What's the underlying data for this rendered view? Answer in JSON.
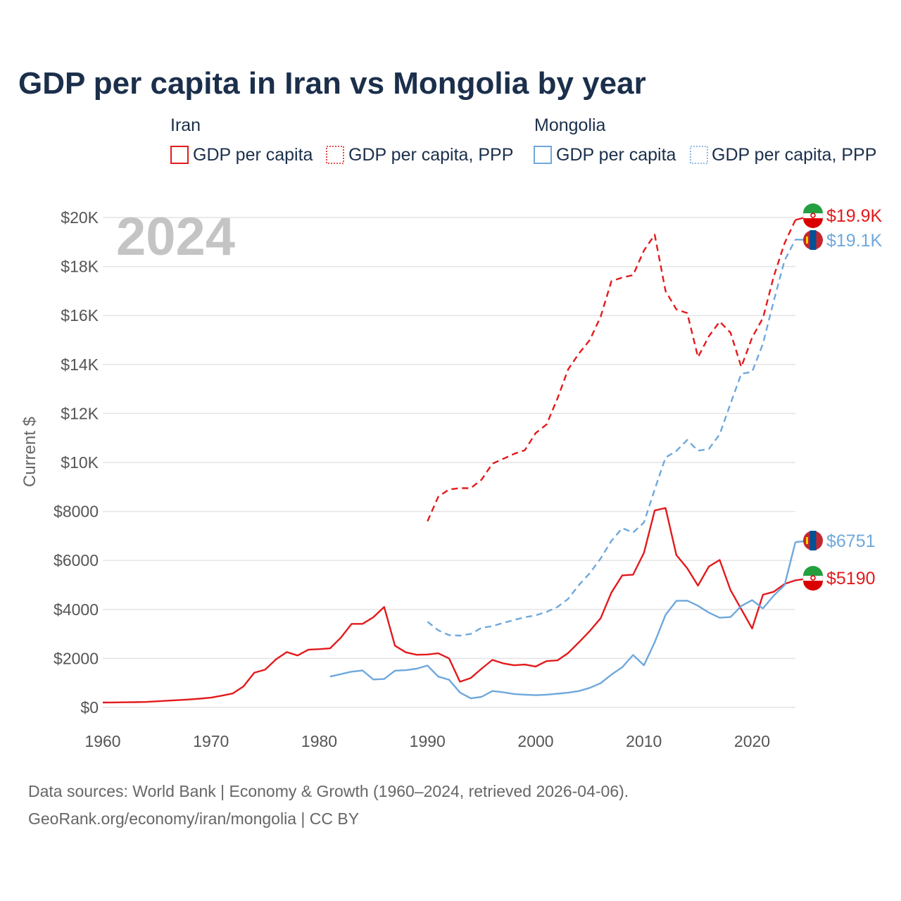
{
  "chart_data": {
    "type": "line",
    "title": "GDP per capita in Iran vs Mongolia by year",
    "ylabel": "Current $",
    "xlabel": "",
    "xlim": [
      1960,
      2024
    ],
    "ylim": [
      0,
      20000
    ],
    "grid": true,
    "year_watermark": "2024",
    "x_ticks": [
      1960,
      1970,
      1980,
      1990,
      2000,
      2010,
      2020
    ],
    "x_tick_labels": [
      "1960",
      "1970",
      "1980",
      "1990",
      "2000",
      "2010",
      "2020"
    ],
    "y_ticks": [
      0,
      2000,
      4000,
      6000,
      8000,
      10000,
      12000,
      14000,
      16000,
      18000,
      20000
    ],
    "y_tick_labels": [
      "$0",
      "$2000",
      "$4000",
      "$6000",
      "$8000",
      "$10K",
      "$12K",
      "$14K",
      "$16K",
      "$18K",
      "$20K"
    ],
    "legend": {
      "placement": "top",
      "groups": [
        {
          "title": "Iran",
          "entries": [
            "GDP per capita",
            "GDP per capita, PPP"
          ]
        },
        {
          "title": "Mongolia",
          "entries": [
            "GDP per capita",
            "GDP per capita, PPP"
          ]
        }
      ]
    },
    "colors": {
      "iran": "#e31a1c",
      "mongolia": "#6fa8dc"
    },
    "series": [
      {
        "key": "iran_gdp",
        "name": "Iran GDP per capita",
        "country": "iran",
        "dashed": false,
        "end_label": "$5190",
        "x": [
          1960,
          1961,
          1962,
          1963,
          1964,
          1965,
          1966,
          1967,
          1968,
          1969,
          1970,
          1971,
          1972,
          1973,
          1974,
          1975,
          1976,
          1977,
          1978,
          1979,
          1980,
          1981,
          1982,
          1983,
          1984,
          1985,
          1986,
          1987,
          1988,
          1989,
          1990,
          1991,
          1992,
          1993,
          1994,
          1995,
          1996,
          1997,
          1998,
          1999,
          2000,
          2001,
          2002,
          2003,
          2004,
          2005,
          2006,
          2007,
          2008,
          2009,
          2010,
          2011,
          2012,
          2013,
          2014,
          2015,
          2016,
          2017,
          2018,
          2019,
          2020,
          2021,
          2022,
          2023,
          2024
        ],
        "values": [
          200,
          205,
          210,
          215,
          225,
          250,
          275,
          300,
          325,
          360,
          400,
          480,
          570,
          860,
          1420,
          1540,
          1960,
          2260,
          2120,
          2360,
          2380,
          2410,
          2850,
          3410,
          3410,
          3680,
          4100,
          2520,
          2250,
          2150,
          2160,
          2210,
          2000,
          1050,
          1200,
          1580,
          1940,
          1800,
          1720,
          1750,
          1670,
          1890,
          1920,
          2220,
          2660,
          3120,
          3640,
          4690,
          5390,
          5420,
          6310,
          8040,
          8140,
          6220,
          5680,
          4970,
          5750,
          6020,
          4790,
          4010,
          3220,
          4600,
          4720,
          5040,
          5190
        ]
      },
      {
        "key": "iran_ppp",
        "name": "Iran GDP per capita, PPP",
        "country": "iran",
        "dashed": true,
        "end_label": "$19.9K",
        "x": [
          1990,
          1991,
          1992,
          1993,
          1994,
          1995,
          1996,
          1997,
          1998,
          1999,
          2000,
          2001,
          2002,
          2003,
          2004,
          2005,
          2006,
          2007,
          2008,
          2009,
          2010,
          2011,
          2012,
          2013,
          2014,
          2015,
          2016,
          2017,
          2018,
          2019,
          2020,
          2021,
          2022,
          2023,
          2024
        ],
        "values": [
          7600,
          8600,
          8900,
          8950,
          8950,
          9300,
          9950,
          10150,
          10350,
          10500,
          11200,
          11550,
          12600,
          13800,
          14450,
          15000,
          15950,
          17400,
          17550,
          17650,
          18650,
          19300,
          17000,
          16250,
          16100,
          14300,
          15150,
          15750,
          15300,
          13900,
          15100,
          15900,
          17600,
          18950,
          19900
        ]
      },
      {
        "key": "mongolia_gdp",
        "name": "Mongolia GDP per capita",
        "country": "mongolia",
        "dashed": false,
        "end_label": "$6751",
        "x": [
          1981,
          1982,
          1983,
          1984,
          1985,
          1986,
          1987,
          1988,
          1989,
          1990,
          1991,
          1992,
          1993,
          1994,
          1995,
          1996,
          1997,
          1998,
          1999,
          2000,
          2001,
          2002,
          2003,
          2004,
          2005,
          2006,
          2007,
          2008,
          2009,
          2010,
          2011,
          2012,
          2013,
          2014,
          2015,
          2016,
          2017,
          2018,
          2019,
          2020,
          2021,
          2022,
          2023,
          2024
        ],
        "values": [
          1260,
          1360,
          1460,
          1510,
          1140,
          1160,
          1500,
          1520,
          1580,
          1710,
          1260,
          1130,
          610,
          370,
          430,
          670,
          620,
          550,
          520,
          500,
          520,
          560,
          600,
          670,
          800,
          990,
          1340,
          1640,
          2140,
          1720,
          2660,
          3780,
          4350,
          4360,
          4150,
          3870,
          3660,
          3690,
          4140,
          4380,
          4040,
          4570,
          4990,
          6751
        ]
      },
      {
        "key": "mongolia_ppp",
        "name": "Mongolia GDP per capita, PPP",
        "country": "mongolia",
        "dashed": true,
        "end_label": "$19.1K",
        "x": [
          1990,
          1991,
          1992,
          1993,
          1994,
          1995,
          1996,
          1997,
          1998,
          1999,
          2000,
          2001,
          2002,
          2003,
          2004,
          2005,
          2006,
          2007,
          2008,
          2009,
          2010,
          2011,
          2012,
          2013,
          2014,
          2015,
          2016,
          2017,
          2018,
          2019,
          2020,
          2021,
          2022,
          2023,
          2024
        ],
        "values": [
          3500,
          3150,
          2950,
          2930,
          3000,
          3250,
          3320,
          3450,
          3570,
          3680,
          3760,
          3900,
          4100,
          4430,
          5000,
          5480,
          6080,
          6800,
          7320,
          7140,
          7550,
          8900,
          10200,
          10470,
          10920,
          10480,
          10550,
          11150,
          12400,
          13620,
          13700,
          14850,
          16600,
          18250,
          19100
        ]
      }
    ],
    "source_lines": [
      "Data sources: World Bank | Economy & Growth (1960–2024, retrieved 2026-04-06).",
      "GeoRank.org/economy/iran/mongolia | CC BY"
    ]
  }
}
